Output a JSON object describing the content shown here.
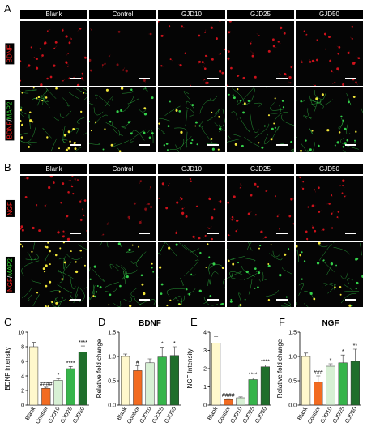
{
  "panels": {
    "A": "A",
    "B": "B",
    "C": "C",
    "D": "D",
    "E": "E",
    "F": "F"
  },
  "groups": [
    "Blank",
    "Control",
    "GJD10",
    "GJD25",
    "GJD50"
  ],
  "row_labels": {
    "a1": {
      "red": "BDNF"
    },
    "a2": {
      "red": "BDNF",
      "sep": "/",
      "green": "MAP2"
    },
    "b1": {
      "red": "NGF"
    },
    "b2": {
      "red": "NGF",
      "sep": "/",
      "green": "MAP2"
    }
  },
  "colors": {
    "Blank": "#fff8cc",
    "Control": "#f26b21",
    "GJD10": "#d7f0d4",
    "GJD25": "#36b44a",
    "GJD50": "#1f6e2b",
    "neuron_red": "#e0141e",
    "neuron_green": "#34d04a",
    "neuron_yellow": "#f2e63a"
  },
  "chart_data": [
    {
      "type": "bar",
      "title": "",
      "ylabel": "BDNF intensity",
      "categories": [
        "Blank",
        "Control",
        "GJD10",
        "GJD25",
        "GJD50"
      ],
      "values": [
        8.0,
        2.3,
        3.4,
        5.0,
        7.3
      ],
      "errors": [
        0.6,
        0.15,
        0.25,
        0.3,
        0.8
      ],
      "ylim": [
        0,
        10
      ],
      "yticks": [
        0,
        2,
        4,
        6,
        8,
        10
      ],
      "significance": [
        "",
        "####",
        "*",
        "****",
        "****"
      ]
    },
    {
      "type": "bar",
      "title": "BDNF",
      "ylabel": "Relative fold change",
      "categories": [
        "Blank",
        "Control",
        "GJD10",
        "GJD25",
        "GJD50"
      ],
      "values": [
        1.0,
        0.71,
        0.87,
        0.99,
        1.02
      ],
      "errors": [
        0.05,
        0.1,
        0.08,
        0.2,
        0.18
      ],
      "ylim": [
        0,
        1.5
      ],
      "yticks": [
        0.0,
        0.5,
        1.0,
        1.5
      ],
      "significance": [
        "",
        "#",
        "",
        "*",
        "*"
      ]
    },
    {
      "type": "bar",
      "title": "",
      "ylabel": "NGF Intensity",
      "categories": [
        "Blank",
        "Control",
        "GJD10",
        "GJD25",
        "GJD50"
      ],
      "values": [
        3.4,
        0.3,
        0.4,
        1.4,
        2.1
      ],
      "errors": [
        0.35,
        0.05,
        0.05,
        0.1,
        0.1
      ],
      "ylim": [
        0,
        4
      ],
      "yticks": [
        0,
        1,
        2,
        3,
        4
      ],
      "significance": [
        "",
        "####",
        "",
        "****",
        "****"
      ]
    },
    {
      "type": "bar",
      "title": "NGF",
      "ylabel": "Relative fold change",
      "categories": [
        "Blank",
        "Control",
        "GJD10",
        "GJD25",
        "GJD50"
      ],
      "values": [
        1.0,
        0.47,
        0.8,
        0.87,
        0.9
      ],
      "errors": [
        0.07,
        0.13,
        0.05,
        0.16,
        0.25
      ],
      "ylim": [
        0,
        1.5
      ],
      "yticks": [
        0.0,
        0.5,
        1.0,
        1.5
      ],
      "significance": [
        "",
        "###",
        "*",
        "*",
        "**"
      ]
    }
  ]
}
